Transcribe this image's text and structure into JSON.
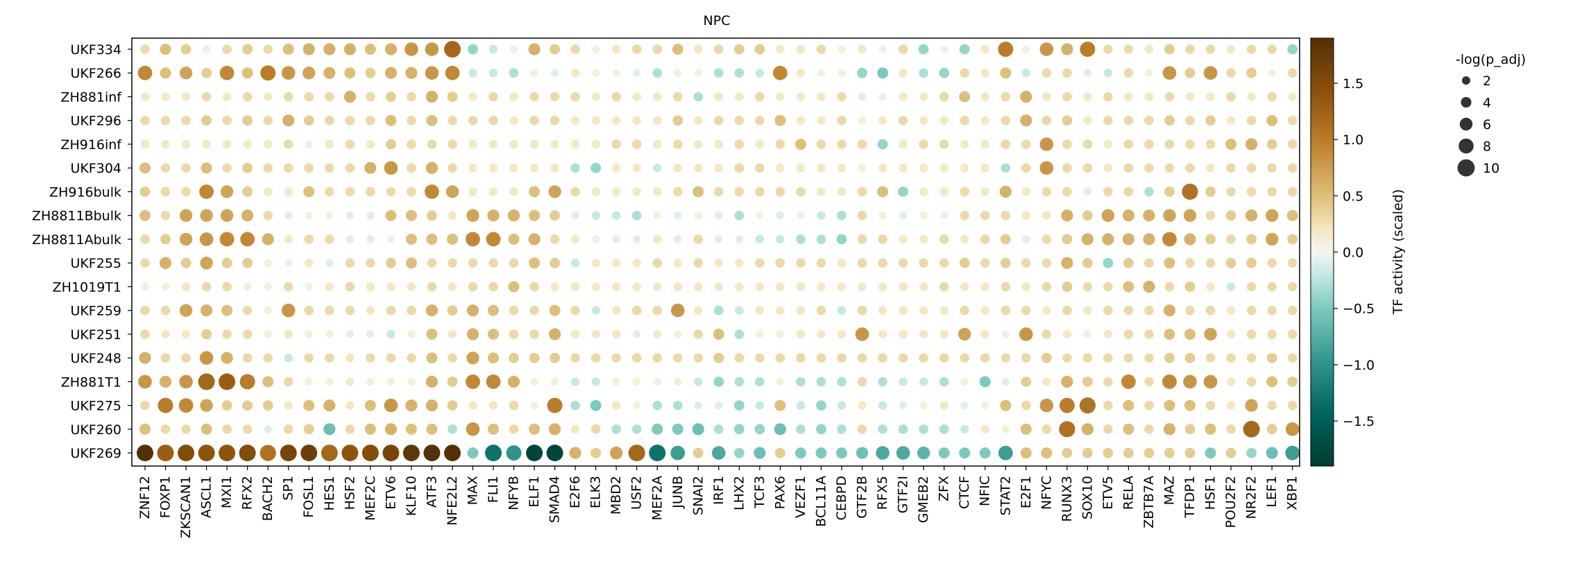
{
  "chart_data": {
    "type": "dotplot",
    "title": "NPC",
    "rows": [
      "UKF334",
      "UKF266",
      "ZH881inf",
      "UKF296",
      "ZH916inf",
      "UKF304",
      "ZH916bulk",
      "ZH8811Bbulk",
      "ZH8811Abulk",
      "UKF255",
      "ZH1019T1",
      "UKF259",
      "UKF251",
      "UKF248",
      "ZH881T1",
      "UKF275",
      "UKF260",
      "UKF269"
    ],
    "columns": [
      "ZNF12",
      "FOXP1",
      "ZKSCAN1",
      "ASCL1",
      "MXI1",
      "RFX2",
      "BACH2",
      "SP1",
      "FOSL1",
      "HES1",
      "HSF2",
      "MEF2C",
      "ETV6",
      "KLF10",
      "ATF3",
      "NFE2L2",
      "MAX",
      "FLI1",
      "NFYB",
      "ELF1",
      "SMAD4",
      "E2F6",
      "ELK3",
      "MBD2",
      "USF2",
      "MEF2A",
      "JUNB",
      "SNAI2",
      "IRF1",
      "LHX2",
      "TCF3",
      "PAX6",
      "VEZF1",
      "BCL11A",
      "CEBPD",
      "GTF2B",
      "RFX5",
      "GTF2I",
      "GMEB2",
      "ZFX",
      "CTCF",
      "NFIC",
      "STAT2",
      "E2F1",
      "NFYC",
      "RUNX3",
      "SOX10",
      "ETV5",
      "RELA",
      "ZBTB7A",
      "MAZ",
      "TFDP1",
      "HSF1",
      "POU2F2",
      "NR2F2",
      "LEF1",
      "XBP1"
    ],
    "activity": [
      [
        0.3,
        0.5,
        0.4,
        0.1,
        0.3,
        0.4,
        0.3,
        0.5,
        0.6,
        0.6,
        0.6,
        0.5,
        0.6,
        0.8,
        0.8,
        1.2,
        -0.4,
        -0.2,
        0.1,
        0.6,
        0.4,
        0.3,
        0.1,
        0.2,
        0.3,
        0.3,
        0.5,
        0.2,
        0.3,
        0.4,
        0.4,
        0.2,
        0.2,
        0.3,
        0.1,
        0.2,
        0.1,
        0.3,
        -0.4,
        0.1,
        -0.4,
        0.2,
        1.0,
        0.1,
        0.8,
        0.6,
        1.0,
        0.3,
        0.3,
        0.2,
        0.4,
        0.3,
        0.3,
        0.2,
        0.3,
        0.3,
        -0.4
      ],
      [
        0.9,
        0.5,
        0.7,
        0.4,
        0.9,
        0.5,
        1.0,
        0.8,
        0.7,
        0.6,
        0.5,
        0.4,
        0.6,
        0.6,
        0.8,
        0.9,
        -0.2,
        -0.2,
        -0.3,
        0.1,
        -0.1,
        0.2,
        0.1,
        0.1,
        -0.1,
        -0.3,
        0.1,
        0.1,
        -0.3,
        -0.3,
        -0.2,
        0.9,
        0.2,
        0.1,
        0.1,
        -0.4,
        -0.5,
        0.2,
        -0.3,
        -0.4,
        0.3,
        0.2,
        0.5,
        -0.2,
        0.3,
        0.3,
        -0.1,
        -0.2,
        0.3,
        0.1,
        0.8,
        0.4,
        0.8,
        0.3,
        0.4,
        0.1,
        0.3
      ],
      [
        0.2,
        0.2,
        0.2,
        0.3,
        0.2,
        0.3,
        0.2,
        0.3,
        0.3,
        0.3,
        0.6,
        0.3,
        0.4,
        0.3,
        0.6,
        0.4,
        0.2,
        0.3,
        0.2,
        0.3,
        0.3,
        0.3,
        0.2,
        0.3,
        0.2,
        0.2,
        0.3,
        -0.3,
        0.2,
        0.2,
        0.3,
        0.2,
        0.2,
        0.2,
        0.3,
        -0.1,
        0.1,
        0.2,
        0.2,
        0.3,
        0.5,
        0.2,
        0.3,
        0.6,
        0.2,
        0.3,
        0.2,
        0.3,
        0.2,
        0.2,
        0.3,
        0.2,
        0.2,
        0.3,
        0.2,
        0.3,
        0.2
      ],
      [
        0.3,
        0.3,
        0.3,
        0.4,
        0.3,
        0.4,
        0.3,
        0.6,
        0.4,
        0.3,
        0.3,
        0.3,
        0.5,
        0.3,
        0.5,
        0.3,
        0.3,
        0.3,
        0.2,
        0.3,
        0.3,
        0.2,
        0.2,
        0.2,
        0.2,
        0.2,
        0.4,
        0.2,
        0.3,
        0.3,
        0.3,
        0.5,
        0.2,
        0.2,
        0.3,
        0.1,
        0.2,
        0.3,
        0.2,
        0.2,
        0.3,
        0.2,
        0.3,
        0.6,
        0.3,
        0.4,
        0.2,
        0.3,
        0.3,
        0.3,
        0.4,
        0.3,
        0.4,
        0.2,
        0.3,
        0.5,
        0.3
      ],
      [
        0.2,
        0.2,
        0.2,
        0.2,
        0.2,
        0.2,
        0.2,
        0.3,
        0.1,
        0.2,
        0.3,
        0.2,
        0.4,
        0.3,
        0.3,
        0.3,
        0.2,
        0.2,
        0.2,
        0.2,
        0.2,
        0.2,
        0.2,
        0.3,
        0.3,
        0.2,
        0.3,
        0.2,
        0.2,
        0.3,
        0.2,
        0.3,
        0.5,
        0.3,
        0.3,
        0.3,
        -0.4,
        0.2,
        0.3,
        0.3,
        0.2,
        0.2,
        0.3,
        0.3,
        0.8,
        0.3,
        0.3,
        0.2,
        0.3,
        0.3,
        0.3,
        0.3,
        0.3,
        0.5,
        0.6,
        0.4,
        0.3
      ],
      [
        0.5,
        0.3,
        0.3,
        0.5,
        0.3,
        0.4,
        0.3,
        0.3,
        0.3,
        0.3,
        0.3,
        0.6,
        0.8,
        0.3,
        0.6,
        0.3,
        0.2,
        0.2,
        0.2,
        0.2,
        0.2,
        -0.3,
        -0.4,
        0.2,
        0.2,
        -0.2,
        0.2,
        0.2,
        0.2,
        0.3,
        0.3,
        0.2,
        0.2,
        0.2,
        0.2,
        0.1,
        0.2,
        0.2,
        0.2,
        0.2,
        0.2,
        0.2,
        -0.3,
        0.3,
        0.8,
        0.3,
        0.3,
        0.2,
        0.3,
        0.3,
        0.3,
        0.3,
        0.2,
        0.3,
        0.3,
        0.3,
        0.3
      ],
      [
        0.4,
        0.3,
        0.3,
        0.9,
        0.7,
        0.4,
        0.2,
        0.2,
        0.5,
        0.3,
        0.3,
        0.3,
        0.3,
        0.3,
        0.9,
        0.7,
        0.2,
        0.2,
        0.2,
        0.5,
        0.7,
        0.3,
        0.2,
        0.2,
        0.2,
        0.2,
        0.3,
        0.5,
        0.3,
        0.3,
        0.3,
        0.3,
        0.3,
        0.2,
        0.2,
        0.3,
        0.5,
        -0.4,
        0.2,
        0.2,
        0.3,
        0.2,
        0.6,
        0.2,
        0.3,
        0.3,
        -0.1,
        0.3,
        0.3,
        -0.3,
        0.4,
        1.1,
        0.4,
        0.3,
        0.3,
        0.3,
        0.3
      ],
      [
        0.5,
        0.3,
        0.7,
        0.7,
        0.7,
        0.6,
        0.3,
        -0.1,
        0.1,
        0.1,
        -0.1,
        -0.1,
        0.5,
        0.5,
        0.4,
        0.2,
        0.7,
        0.6,
        0.6,
        0.5,
        0.4,
        -0.1,
        -0.2,
        -0.2,
        -0.3,
        0.1,
        -0.1,
        0.1,
        -0.1,
        -0.3,
        0.1,
        -0.1,
        0.1,
        -0.2,
        -0.3,
        0.3,
        0.1,
        -0.1,
        0.1,
        0.1,
        0.3,
        0.3,
        0.3,
        0.2,
        0.2,
        0.6,
        0.4,
        0.7,
        0.6,
        0.6,
        0.7,
        0.7,
        0.3,
        0.4,
        0.6,
        0.7,
        0.5
      ],
      [
        0.3,
        0.4,
        0.7,
        0.8,
        0.9,
        0.9,
        0.6,
        0.2,
        0.3,
        0.3,
        -0.1,
        -0.1,
        0.1,
        0.5,
        0.5,
        0.5,
        0.9,
        0.9,
        0.5,
        0.6,
        0.3,
        0.2,
        0.1,
        -0.1,
        -0.1,
        0.2,
        -0.1,
        0.3,
        -0.1,
        -0.1,
        -0.2,
        -0.2,
        -0.3,
        -0.3,
        -0.4,
        0.3,
        0.3,
        0.2,
        0.2,
        0.3,
        0.2,
        0.3,
        0.4,
        -0.1,
        0.3,
        0.4,
        0.6,
        0.6,
        0.6,
        0.6,
        0.9,
        0.6,
        0.4,
        0.3,
        0.4,
        0.7,
        0.4
      ],
      [
        0.3,
        0.6,
        0.4,
        0.7,
        0.4,
        0.4,
        0.1,
        0.1,
        0.2,
        -0.1,
        0.3,
        0.3,
        0.4,
        0.5,
        0.3,
        0.3,
        0.3,
        0.3,
        0.3,
        0.5,
        0.4,
        -0.2,
        0.2,
        0.2,
        0.2,
        0.3,
        0.2,
        0.3,
        0.2,
        0.2,
        0.3,
        0.3,
        0.3,
        0.3,
        0.2,
        0.3,
        0.3,
        0.3,
        0.3,
        0.3,
        0.4,
        0.3,
        0.4,
        0.3,
        0.3,
        0.6,
        0.4,
        -0.4,
        0.4,
        0.3,
        0.5,
        0.3,
        0.3,
        0.4,
        0.4,
        0.3,
        0.3
      ],
      [
        0.1,
        0.1,
        0.2,
        0.3,
        0.3,
        0.1,
        0.1,
        0.3,
        0.1,
        0.2,
        0.3,
        0.2,
        0.2,
        0.2,
        0.3,
        0.2,
        0.3,
        0.3,
        0.5,
        0.3,
        0.2,
        0.2,
        0.2,
        0.2,
        0.2,
        0.2,
        0.2,
        0.2,
        0.2,
        0.2,
        0.2,
        0.2,
        0.2,
        0.2,
        0.2,
        0.2,
        0.2,
        0.2,
        0.2,
        0.3,
        0.2,
        0.2,
        0.3,
        0.2,
        0.3,
        0.4,
        0.3,
        0.3,
        0.5,
        0.6,
        0.3,
        0.4,
        0.2,
        -0.2,
        0.3,
        0.3,
        0.3
      ],
      [
        0.3,
        0.3,
        0.7,
        0.6,
        0.5,
        0.3,
        0.1,
        0.8,
        0.3,
        0.3,
        0.3,
        0.2,
        0.3,
        0.3,
        0.6,
        0.4,
        0.6,
        0.5,
        0.3,
        0.3,
        0.5,
        0.3,
        -0.2,
        0.2,
        0.3,
        0.3,
        0.8,
        0.2,
        -0.3,
        -0.2,
        0.2,
        0.2,
        0.2,
        0.3,
        -0.2,
        0.3,
        0.2,
        0.2,
        0.2,
        0.2,
        0.3,
        0.2,
        0.3,
        0.3,
        0.2,
        0.3,
        0.2,
        0.3,
        0.3,
        0.3,
        0.6,
        0.3,
        0.3,
        0.2,
        0.3,
        0.3,
        0.3
      ],
      [
        0.3,
        0.2,
        0.2,
        0.4,
        0.3,
        0.3,
        0.1,
        0.2,
        0.1,
        0.1,
        -0.1,
        -0.1,
        -0.2,
        0.1,
        0.5,
        0.2,
        0.6,
        0.5,
        0.3,
        0.3,
        0.6,
        0.2,
        0.2,
        0.2,
        -0.1,
        0.2,
        0.1,
        0.3,
        0.5,
        -0.3,
        0.1,
        0.1,
        0.2,
        0.2,
        0.2,
        0.8,
        0.2,
        0.2,
        0.2,
        0.2,
        0.7,
        0.2,
        0.1,
        0.8,
        0.3,
        0.2,
        0.1,
        0.2,
        0.3,
        0.3,
        0.5,
        0.5,
        0.7,
        0.2,
        0.3,
        0.3,
        0.3
      ],
      [
        0.6,
        0.3,
        0.3,
        0.8,
        0.6,
        0.3,
        0.3,
        -0.2,
        0.3,
        0.3,
        0.2,
        0.3,
        0.3,
        0.3,
        0.5,
        0.3,
        0.7,
        0.5,
        0.4,
        0.4,
        0.4,
        0.3,
        0.3,
        0.3,
        0.3,
        0.3,
        0.3,
        0.3,
        0.4,
        0.3,
        0.3,
        0.3,
        0.3,
        0.3,
        0.3,
        0.3,
        0.3,
        0.3,
        0.3,
        0.3,
        0.3,
        0.3,
        0.3,
        0.3,
        0.4,
        0.3,
        0.3,
        0.3,
        0.3,
        0.3,
        0.4,
        0.4,
        0.3,
        0.3,
        0.3,
        0.4,
        0.3
      ],
      [
        0.8,
        0.6,
        0.8,
        1.2,
        1.3,
        1.0,
        0.5,
        0.3,
        0.1,
        0.1,
        0.2,
        0.1,
        0.1,
        0.1,
        0.6,
        0.4,
        0.9,
        0.9,
        0.6,
        0.1,
        0.1,
        -0.2,
        -0.2,
        0.1,
        0.1,
        0.1,
        0.1,
        -0.2,
        -0.4,
        -0.3,
        -0.3,
        0.1,
        -0.3,
        -0.3,
        -0.3,
        0.3,
        -0.3,
        -0.2,
        -0.2,
        -0.3,
        0.1,
        -0.5,
        -0.1,
        0.4,
        0.2,
        0.6,
        0.4,
        0.3,
        0.9,
        0.3,
        0.9,
        0.8,
        0.8,
        0.2,
        0.3,
        0.5,
        0.4
      ],
      [
        0.3,
        1.0,
        0.9,
        0.7,
        0.4,
        0.4,
        0.4,
        0.2,
        0.5,
        0.6,
        0.2,
        0.5,
        0.8,
        0.6,
        0.6,
        0.4,
        0.2,
        0.2,
        0.3,
        0.1,
        1.0,
        -0.3,
        -0.5,
        0.2,
        0.1,
        -0.3,
        -0.3,
        -0.1,
        -0.1,
        -0.4,
        -0.2,
        0.5,
        -0.2,
        -0.4,
        -0.2,
        0.2,
        -0.2,
        -0.1,
        0.1,
        0.2,
        -0.1,
        0.1,
        0.5,
        0.3,
        0.8,
        1.0,
        1.1,
        0.3,
        0.5,
        0.3,
        0.5,
        0.5,
        0.3,
        0.2,
        0.7,
        0.3,
        0.3
      ],
      [
        0.5,
        0.3,
        0.3,
        0.5,
        0.3,
        0.3,
        -0.1,
        0.3,
        0.4,
        -0.6,
        0.3,
        0.5,
        0.6,
        0.5,
        0.5,
        -0.3,
        0.8,
        0.5,
        0.3,
        0.5,
        0.6,
        0.2,
        0.3,
        -0.3,
        -0.3,
        -0.5,
        -0.5,
        -0.6,
        -0.3,
        -0.4,
        -0.4,
        -0.6,
        -0.3,
        -0.4,
        -0.3,
        0.3,
        -0.3,
        -0.3,
        -0.3,
        -0.3,
        -0.2,
        0.2,
        0.1,
        0.5,
        0.3,
        1.1,
        0.6,
        0.3,
        0.5,
        0.3,
        0.6,
        0.4,
        0.5,
        0.3,
        1.2,
        0.4,
        0.8
      ],
      [
        1.9,
        1.3,
        1.5,
        1.4,
        1.4,
        1.5,
        1.1,
        1.6,
        1.7,
        1.2,
        1.4,
        1.5,
        1.6,
        1.8,
        1.9,
        1.9,
        -0.5,
        -1.3,
        -1.0,
        -1.8,
        -1.8,
        0.6,
        0.4,
        0.7,
        1.2,
        -1.3,
        -0.9,
        0.4,
        -0.8,
        -0.4,
        -0.6,
        0.4,
        -0.5,
        -0.5,
        -0.5,
        -0.6,
        -0.8,
        -0.8,
        -0.7,
        -0.5,
        -0.5,
        -0.5,
        -0.9,
        0.5,
        0.5,
        0.4,
        0.4,
        0.4,
        0.4,
        0.4,
        0.4,
        0.4,
        -0.5,
        0.4,
        -0.4,
        -0.6,
        -0.9
      ]
    ],
    "colorbar": {
      "label": "TF activity (scaled)",
      "ticks": [
        1.5,
        1.0,
        0.5,
        0.0,
        -0.5,
        -1.0,
        -1.5
      ],
      "range": [
        -1.9,
        1.9
      ]
    },
    "size_legend": {
      "title": "-log(p_adj)",
      "values": [
        2,
        4,
        6,
        8,
        10
      ]
    }
  }
}
